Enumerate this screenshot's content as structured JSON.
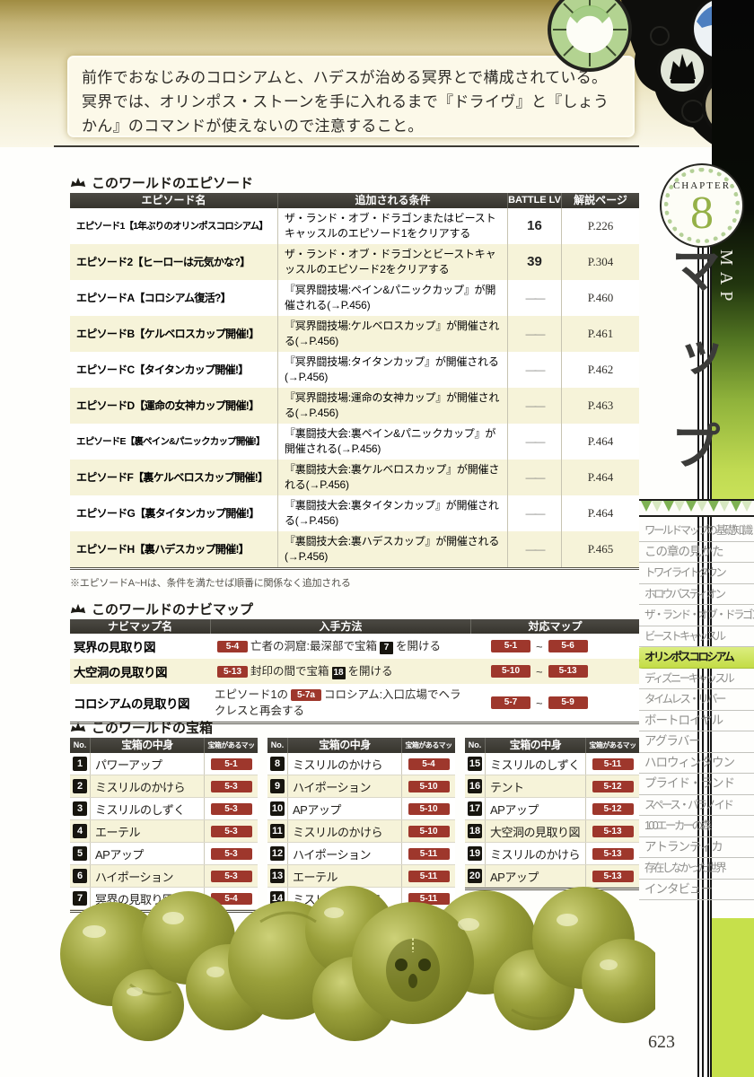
{
  "page": {
    "number": "623"
  },
  "intro": {
    "text": "前作でおなじみのコロシアムと、ハデスが治める冥界とで構成されている。冥界では、オリンポス・ストーンを手に入れるまで『ドライヴ』と『しょうかん』のコマンドが使えないので注意すること。"
  },
  "chapter": {
    "label": "CHAPTER",
    "number": "8",
    "title_jp": "マップ",
    "title_en": "MAP"
  },
  "episodes": {
    "title": "このワールドのエピソード",
    "columns": [
      "エピソード名",
      "追加される条件",
      "BATTLE LV",
      "解説ページ"
    ],
    "rows": [
      {
        "name": "エピソード1【1年ぶりのオリンポスコロシアム】",
        "condition": "ザ・ランド・オブ・ドラゴンまたはビーストキャッスルのエピソード1をクリアする",
        "battle_lv": "16",
        "page": "P.226"
      },
      {
        "name": "エピソード2【ヒーローは元気かな?】",
        "condition": "ザ・ランド・オブ・ドラゴンとビーストキャッスルのエピソード2をクリアする",
        "battle_lv": "39",
        "page": "P.304"
      },
      {
        "name": "エピソードA【コロシアム復活?】",
        "condition": "『冥界闘技場:ペイン&パニックカップ』が開催される(→P.456)",
        "battle_lv": "——",
        "page": "P.460"
      },
      {
        "name": "エピソードB【ケルベロスカップ開催!】",
        "condition": "『冥界闘技場:ケルベロスカップ』が開催される(→P.456)",
        "battle_lv": "——",
        "page": "P.461"
      },
      {
        "name": "エピソードC【タイタンカップ開催!】",
        "condition": "『冥界闘技場:タイタンカップ』が開催される(→P.456)",
        "battle_lv": "——",
        "page": "P.462"
      },
      {
        "name": "エピソードD【運命の女神カップ開催!】",
        "condition": "『冥界闘技場:運命の女神カップ』が開催される(→P.456)",
        "battle_lv": "——",
        "page": "P.463"
      },
      {
        "name": "エピソードE【裏ペイン&パニックカップ開催!】",
        "condition": "『裏闘技大会:裏ペイン&パニックカップ』が開催される(→P.456)",
        "battle_lv": "——",
        "page": "P.464"
      },
      {
        "name": "エピソードF【裏ケルベロスカップ開催!】",
        "condition": "『裏闘技大会:裏ケルベロスカップ』が開催される(→P.456)",
        "battle_lv": "——",
        "page": "P.464"
      },
      {
        "name": "エピソードG【裏タイタンカップ開催!】",
        "condition": "『裏闘技大会:裏タイタンカップ』が開催される(→P.456)",
        "battle_lv": "——",
        "page": "P.464"
      },
      {
        "name": "エピソードH【裏ハデスカップ開催!】",
        "condition": "『裏闘技大会:裏ハデスカップ』が開催される(→P.456)",
        "battle_lv": "——",
        "page": "P.465"
      }
    ],
    "footnote": "※エピソードA~Hは、条件を満たせば順番に関係なく追加される"
  },
  "navimaps": {
    "title": "このワールドのナビマップ",
    "columns": [
      "ナビマップ名",
      "入手方法",
      "対応マップ"
    ],
    "range_sep": "~",
    "rows": [
      {
        "name": "冥界の見取り図",
        "method": [
          {
            "badge": "5-4"
          },
          {
            "text": "亡者の洞窟:最深部で宝箱"
          },
          {
            "chest": "7"
          },
          {
            "text": "を開ける"
          }
        ],
        "maps": {
          "from": "5-1",
          "to": "5-6"
        }
      },
      {
        "name": "大空洞の見取り図",
        "method": [
          {
            "badge": "5-13"
          },
          {
            "text": "封印の間で宝箱"
          },
          {
            "chest": "18"
          },
          {
            "text": "を開ける"
          }
        ],
        "maps": {
          "from": "5-10",
          "to": "5-13"
        }
      },
      {
        "name": "コロシアムの見取り図",
        "method": [
          {
            "text": "エピソード1の"
          },
          {
            "badge": "5-7a"
          },
          {
            "text": "コロシアム:入口広場でヘラクレスと再会する"
          }
        ],
        "maps": {
          "from": "5-7",
          "to": "5-9"
        }
      }
    ]
  },
  "chests": {
    "title": "このワールドの宝箱",
    "columns": [
      "No.",
      "宝箱の中身",
      "宝箱があるマップ"
    ],
    "tables": [
      [
        {
          "no": "1",
          "item": "パワーアップ",
          "map": "5-1"
        },
        {
          "no": "2",
          "item": "ミスリルのかけら",
          "map": "5-3"
        },
        {
          "no": "3",
          "item": "ミスリルのしずく",
          "map": "5-3"
        },
        {
          "no": "4",
          "item": "エーテル",
          "map": "5-3"
        },
        {
          "no": "5",
          "item": "APアップ",
          "map": "5-3"
        },
        {
          "no": "6",
          "item": "ハイポーション",
          "map": "5-3"
        },
        {
          "no": "7",
          "item": "冥界の見取り図",
          "map": "5-4"
        }
      ],
      [
        {
          "no": "8",
          "item": "ミスリルのかけら",
          "map": "5-4"
        },
        {
          "no": "9",
          "item": "ハイポーション",
          "map": "5-10"
        },
        {
          "no": "10",
          "item": "APアップ",
          "map": "5-10"
        },
        {
          "no": "11",
          "item": "ミスリルのかけら",
          "map": "5-10"
        },
        {
          "no": "12",
          "item": "ハイポーション",
          "map": "5-11"
        },
        {
          "no": "13",
          "item": "エーテル",
          "map": "5-11"
        },
        {
          "no": "14",
          "item": "ミスリルのかけら",
          "map": "5-11"
        }
      ],
      [
        {
          "no": "15",
          "item": "ミスリルのしずく",
          "map": "5-11"
        },
        {
          "no": "16",
          "item": "テント",
          "map": "5-12"
        },
        {
          "no": "17",
          "item": "APアップ",
          "map": "5-12"
        },
        {
          "no": "18",
          "item": "大空洞の見取り図",
          "map": "5-13"
        },
        {
          "no": "19",
          "item": "ミスリルのかけら",
          "map": "5-13"
        },
        {
          "no": "20",
          "item": "APアップ",
          "map": "5-13"
        }
      ]
    ]
  },
  "sidebar": {
    "items": [
      {
        "label": "ワールドマップの基礎知識"
      },
      {
        "label": "この章の見かた"
      },
      {
        "label": "トワイライトタウン"
      },
      {
        "label": "ホロウバスティオン"
      },
      {
        "label": "ザ・ランド・オブ・ドラゴン"
      },
      {
        "label": "ビーストキャッスル"
      },
      {
        "label": "オリンポスコロシアム",
        "active": true
      },
      {
        "label": "ディズニーキャッスル"
      },
      {
        "label": "タイムレス・リバー"
      },
      {
        "label": "ボートロイヤル"
      },
      {
        "label": "アグラバー"
      },
      {
        "label": "ハロウィンタウン"
      },
      {
        "label": "プライド・ランド"
      },
      {
        "label": "スペース・パラノイド"
      },
      {
        "label": "100エーカーの森"
      },
      {
        "label": "アトランティカ"
      },
      {
        "label": "存在しなかった世界"
      },
      {
        "label": "インタビュー"
      }
    ]
  },
  "colors": {
    "map_badge_red": "#9e372c",
    "row_cream": "#f6f3d9",
    "table_header_dark": "#403e39",
    "sidebar_chartreuse": "#c6e04b",
    "chapter_number_green": "#95b148"
  }
}
